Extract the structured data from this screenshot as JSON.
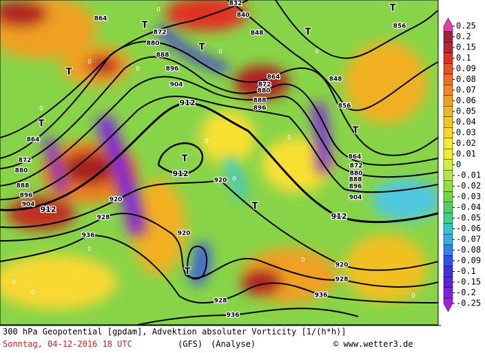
{
  "map": {
    "caption": "300 hPa Geopotential [gpdam], Advektion absoluter Vorticity [1/(h*h)]",
    "date": "Sonntag, 04-12-2016  18 UTC",
    "model": "(GFS)",
    "run": "(Analyse)",
    "credit": "© www.wetter3.de",
    "contour_labels": [
      864,
      872,
      880,
      888,
      896,
      904,
      912,
      832,
      840,
      848,
      856,
      848,
      856,
      864,
      872,
      880,
      888,
      896,
      864,
      872,
      880,
      888,
      896,
      904,
      912,
      920,
      928,
      936,
      912,
      920,
      864,
      872,
      880,
      888,
      896,
      904,
      912,
      920,
      920,
      928,
      936,
      928,
      936
    ],
    "low_labels": [
      "T",
      "T",
      "T",
      "T",
      "T",
      "T",
      "T",
      "T",
      "T",
      "T"
    ],
    "zero_labels": [
      0,
      0,
      0,
      0,
      0,
      0,
      0,
      0,
      0,
      0,
      0,
      0,
      0,
      0
    ]
  },
  "legend": {
    "ticks": [
      0.25,
      0.2,
      0.15,
      0.1,
      0.09,
      0.08,
      0.07,
      0.06,
      0.05,
      0.04,
      0.03,
      0.02,
      0.01,
      0,
      -0.01,
      -0.02,
      -0.03,
      -0.04,
      -0.05,
      -0.06,
      -0.07,
      -0.08,
      -0.09,
      -0.1,
      -0.15,
      -0.2,
      -0.25
    ]
  }
}
